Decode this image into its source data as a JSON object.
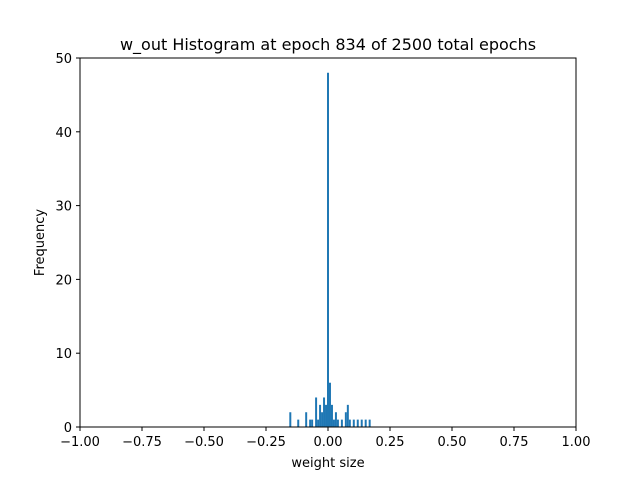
{
  "chart_data": {
    "type": "bar",
    "title": "w_out Histogram at epoch 834 of 2500 total epochs",
    "xlabel": "weight size",
    "ylabel": "Frequency",
    "xlim": [
      -1.0,
      1.0
    ],
    "ylim": [
      0,
      50
    ],
    "grid": false,
    "bar_color": "#1f77b4",
    "bin_width": 0.008,
    "x_ticks": [
      {
        "value": -1.0,
        "label": "−1.00"
      },
      {
        "value": -0.75,
        "label": "−0.75"
      },
      {
        "value": -0.5,
        "label": "−0.50"
      },
      {
        "value": -0.25,
        "label": "−0.25"
      },
      {
        "value": 0.0,
        "label": "0.00"
      },
      {
        "value": 0.25,
        "label": "0.25"
      },
      {
        "value": 0.5,
        "label": "0.50"
      },
      {
        "value": 0.75,
        "label": "0.75"
      },
      {
        "value": 1.0,
        "label": "1.00"
      }
    ],
    "y_ticks": [
      {
        "value": 0,
        "label": "0"
      },
      {
        "value": 10,
        "label": "10"
      },
      {
        "value": 20,
        "label": "20"
      },
      {
        "value": 30,
        "label": "30"
      },
      {
        "value": 40,
        "label": "40"
      },
      {
        "value": 50,
        "label": "50"
      }
    ],
    "bins": [
      {
        "x": -0.152,
        "count": 2
      },
      {
        "x": -0.12,
        "count": 1
      },
      {
        "x": -0.088,
        "count": 2
      },
      {
        "x": -0.072,
        "count": 1
      },
      {
        "x": -0.064,
        "count": 1
      },
      {
        "x": -0.048,
        "count": 4
      },
      {
        "x": -0.04,
        "count": 1
      },
      {
        "x": -0.032,
        "count": 3
      },
      {
        "x": -0.024,
        "count": 2
      },
      {
        "x": -0.016,
        "count": 4
      },
      {
        "x": -0.008,
        "count": 3
      },
      {
        "x": 0.0,
        "count": 48
      },
      {
        "x": 0.008,
        "count": 6
      },
      {
        "x": 0.016,
        "count": 3
      },
      {
        "x": 0.024,
        "count": 1
      },
      {
        "x": 0.032,
        "count": 2
      },
      {
        "x": 0.04,
        "count": 1
      },
      {
        "x": 0.056,
        "count": 1
      },
      {
        "x": 0.072,
        "count": 2
      },
      {
        "x": 0.08,
        "count": 3
      },
      {
        "x": 0.088,
        "count": 1
      },
      {
        "x": 0.104,
        "count": 1
      },
      {
        "x": 0.12,
        "count": 1
      },
      {
        "x": 0.136,
        "count": 1
      },
      {
        "x": 0.152,
        "count": 1
      },
      {
        "x": 0.168,
        "count": 1
      }
    ]
  }
}
